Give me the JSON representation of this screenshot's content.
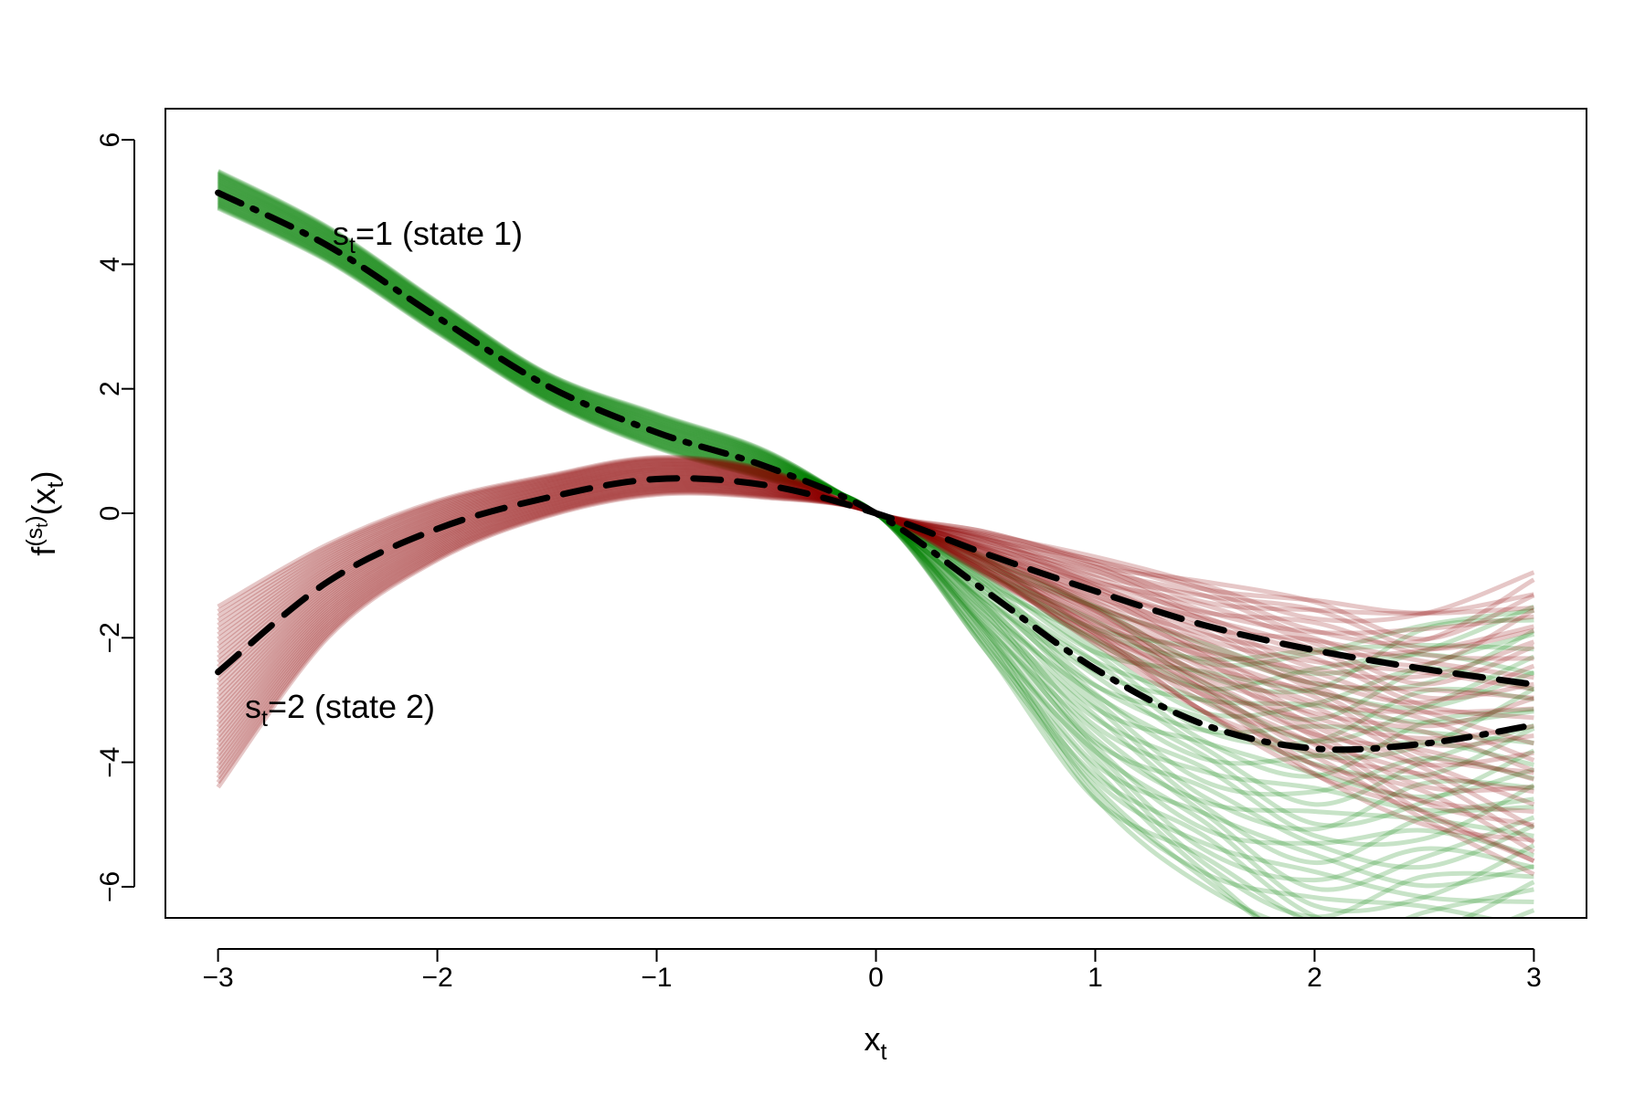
{
  "chart_data": {
    "type": "line",
    "title": "",
    "xlabel": {
      "base": "x",
      "sub": "t"
    },
    "ylabel": {
      "base": "f",
      "sup_base": "(s",
      "sup_sub": "t",
      "sup_close": ")",
      "paren_open": "(x",
      "paren_sub": "t",
      "paren_close": ")"
    },
    "xlim": [
      -3.24,
      3.24
    ],
    "ylim": [
      -6.5,
      6.5
    ],
    "x_ticks": [
      -3,
      -2,
      -1,
      0,
      1,
      2,
      3
    ],
    "x_tick_labels": [
      "−3",
      "−2",
      "−1",
      "0",
      "1",
      "2",
      "3"
    ],
    "y_ticks": [
      -6,
      -4,
      -2,
      0,
      2,
      4,
      6
    ],
    "y_tick_labels": [
      "−6",
      "−4",
      "−2",
      "0",
      "2",
      "4",
      "6"
    ],
    "grid": false,
    "legend": "none",
    "x": [
      -3,
      -2.5,
      -2,
      -1.5,
      -1,
      -0.5,
      0,
      0.5,
      1,
      1.5,
      2,
      2.5,
      3
    ],
    "series": [
      {
        "values": [
          5.15,
          4.3,
          3.15,
          2.05,
          1.3,
          0.75,
          0.0,
          -1.25,
          -2.5,
          -3.4,
          -3.78,
          -3.7,
          -3.4
        ],
        "color": "#008000",
        "band_lower": [
          4.9,
          4.05,
          2.9,
          1.8,
          1.05,
          0.55,
          0.0,
          -2.2,
          -4.6,
          -6.0,
          -7.0,
          -7.0,
          -6.8
        ],
        "band_upper": [
          5.5,
          4.6,
          3.4,
          2.25,
          1.6,
          1.0,
          0.0,
          -0.7,
          -1.5,
          -2.1,
          -2.2,
          -1.8,
          -1.5
        ],
        "line_style": "dot-dash",
        "label": {
          "base": "s",
          "sub": "t",
          "rest": "=1 (state 1)"
        }
      },
      {
        "values": [
          -2.55,
          -1.1,
          -0.25,
          0.25,
          0.55,
          0.45,
          0.0,
          -0.65,
          -1.25,
          -1.8,
          -2.2,
          -2.5,
          -2.75
        ],
        "color": "#8b0000",
        "band_lower": [
          -4.4,
          -2.0,
          -0.75,
          -0.05,
          0.3,
          0.25,
          0.0,
          -1.0,
          -2.1,
          -3.2,
          -4.2,
          -5.0,
          -5.8
        ],
        "band_upper": [
          -1.5,
          -0.5,
          0.2,
          0.6,
          0.9,
          0.7,
          0.0,
          -0.3,
          -0.7,
          -1.1,
          -1.4,
          -1.6,
          -0.95
        ],
        "line_style": "dashed",
        "label": {
          "base": "s",
          "sub": "t",
          "rest": "=2 (state 2)"
        }
      }
    ]
  }
}
